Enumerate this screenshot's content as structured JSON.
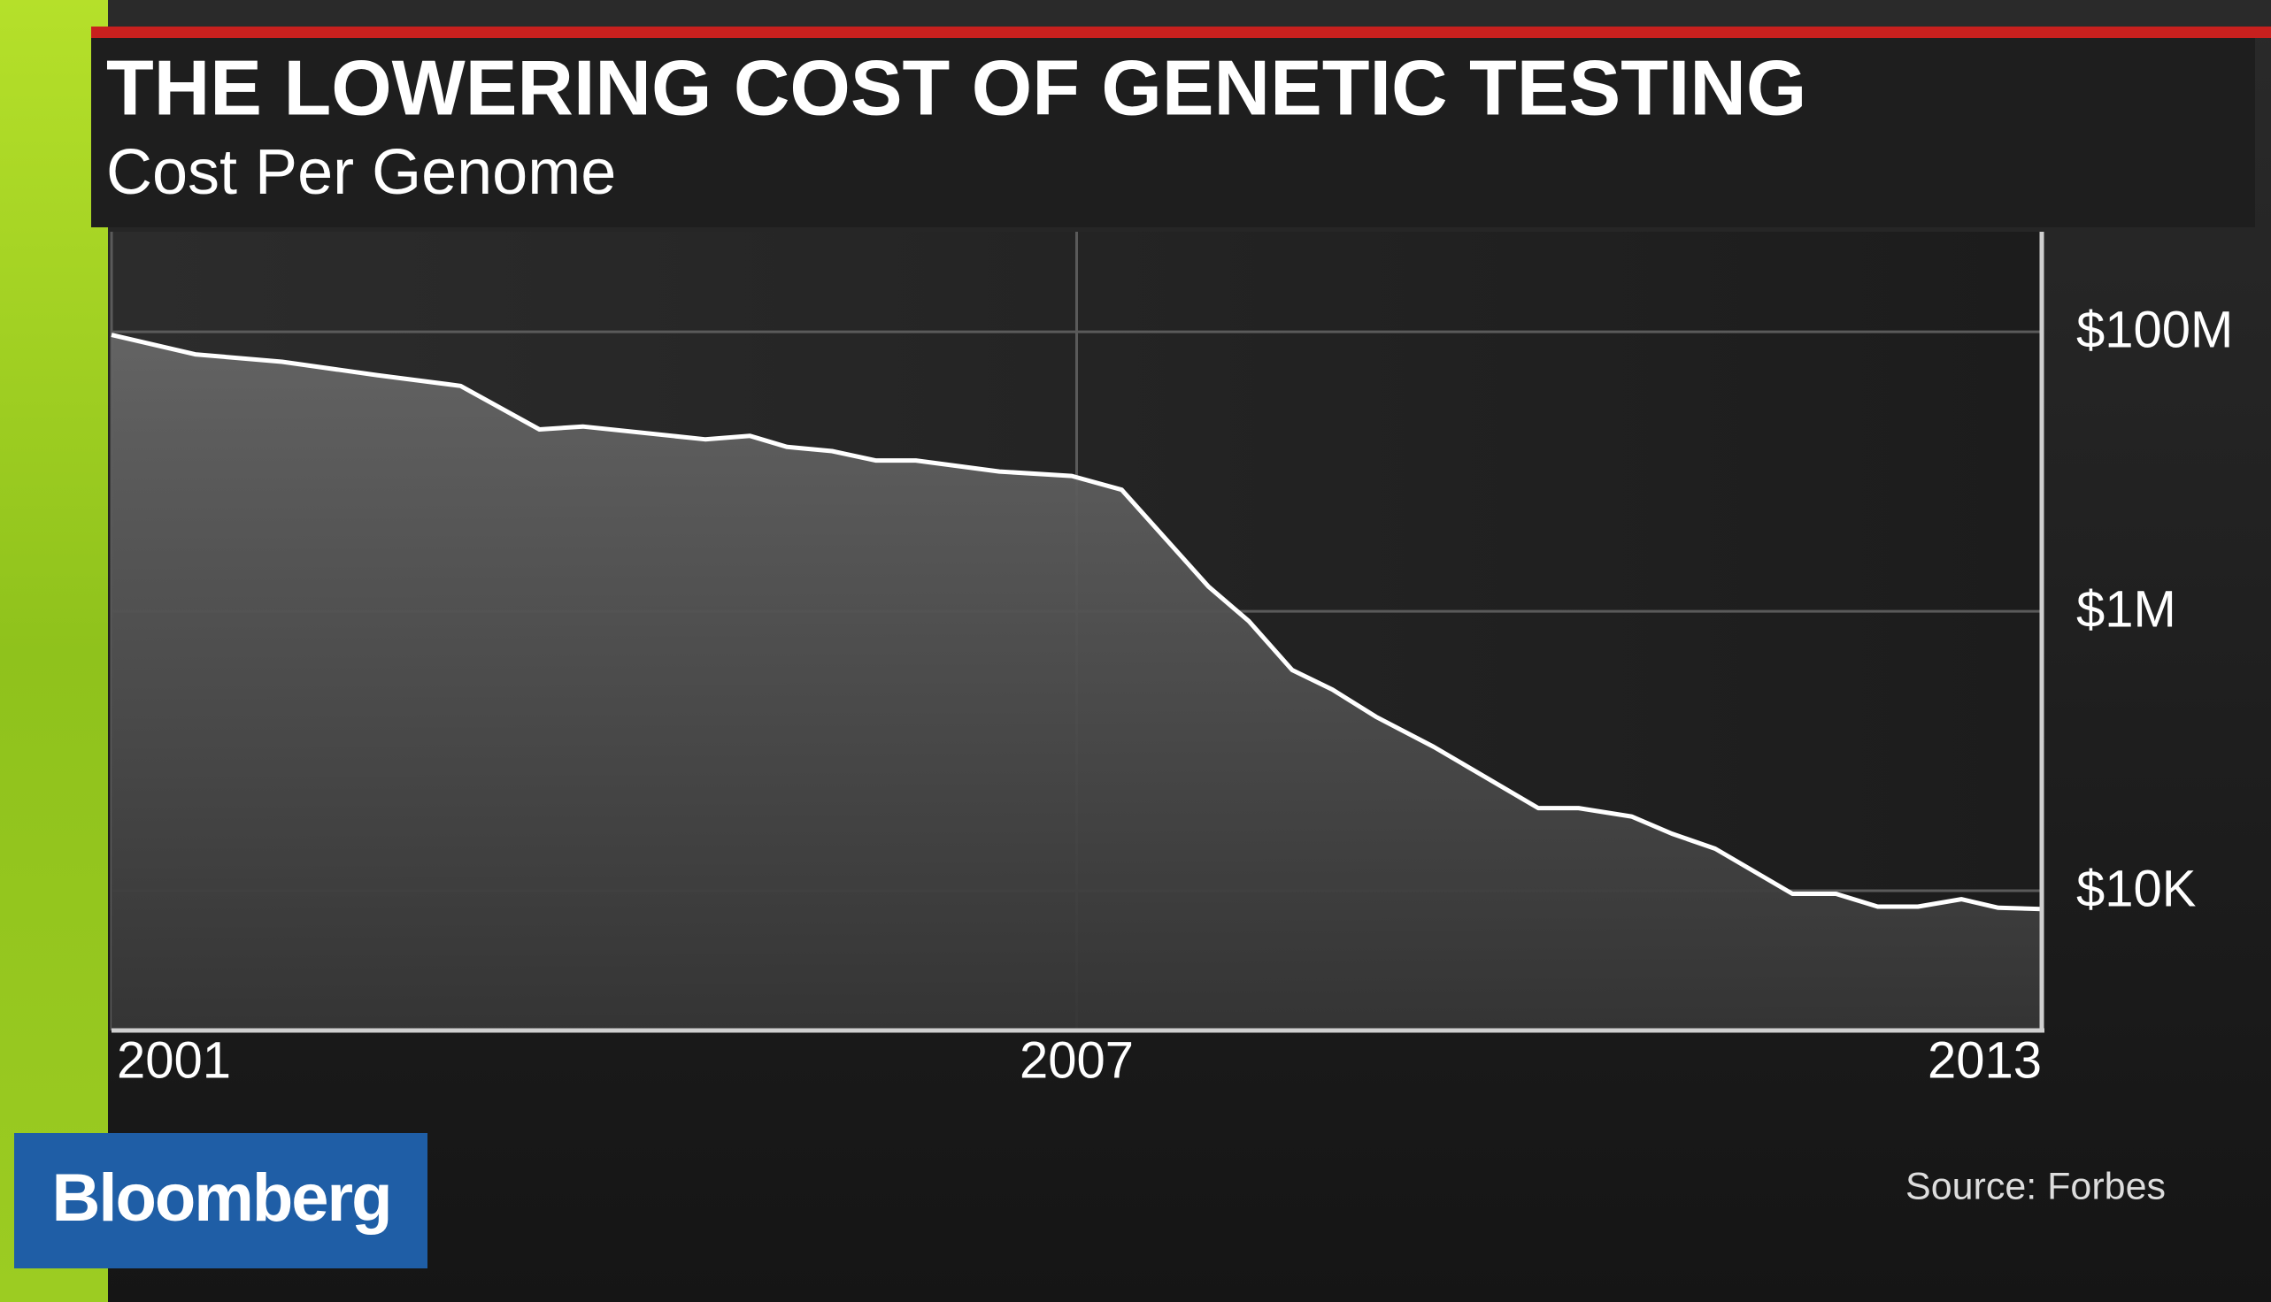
{
  "chart_data": {
    "type": "area",
    "title": "THE LOWERING COST OF GENETIC TESTING",
    "subtitle": "Cost Per Genome",
    "source": "Source: Forbes",
    "brand": "Bloomberg",
    "log_scale": true,
    "grid": true,
    "color": "#ffffff",
    "x": [
      2001.0,
      2001.52,
      2002.06,
      2002.65,
      2003.17,
      2003.66,
      2003.93,
      2004.69,
      2004.97,
      2005.2,
      2005.48,
      2005.75,
      2006.0,
      2006.52,
      2006.97,
      2007.28,
      2007.82,
      2008.07,
      2008.34,
      2008.59,
      2008.86,
      2009.22,
      2009.87,
      2010.12,
      2010.45,
      2010.7,
      2010.97,
      2011.45,
      2011.72,
      2011.98,
      2012.23,
      2012.5,
      2012.73,
      2013.0
    ],
    "values": [
      95000000,
      69000000,
      61000000,
      49000000,
      41000000,
      20000000,
      21000000,
      17000000,
      18000000,
      15000000,
      14000000,
      12000000,
      12000000,
      10000000,
      9300000,
      7400000,
      1500000,
      850000,
      380000,
      275000,
      176000,
      107000,
      39000,
      39000,
      34000,
      25600,
      20000,
      9500,
      9500,
      7700,
      7700,
      8700,
      7550,
      7400
    ],
    "xlim": [
      2001,
      2013
    ],
    "xticks": [
      2001,
      2007,
      2013
    ],
    "ylim": [
      1000,
      520000000
    ],
    "yticks": [
      {
        "value": 100000000,
        "label": "$100M"
      },
      {
        "value": 1000000,
        "label": "$1M"
      },
      {
        "value": 10000,
        "label": "$10K"
      }
    ]
  }
}
